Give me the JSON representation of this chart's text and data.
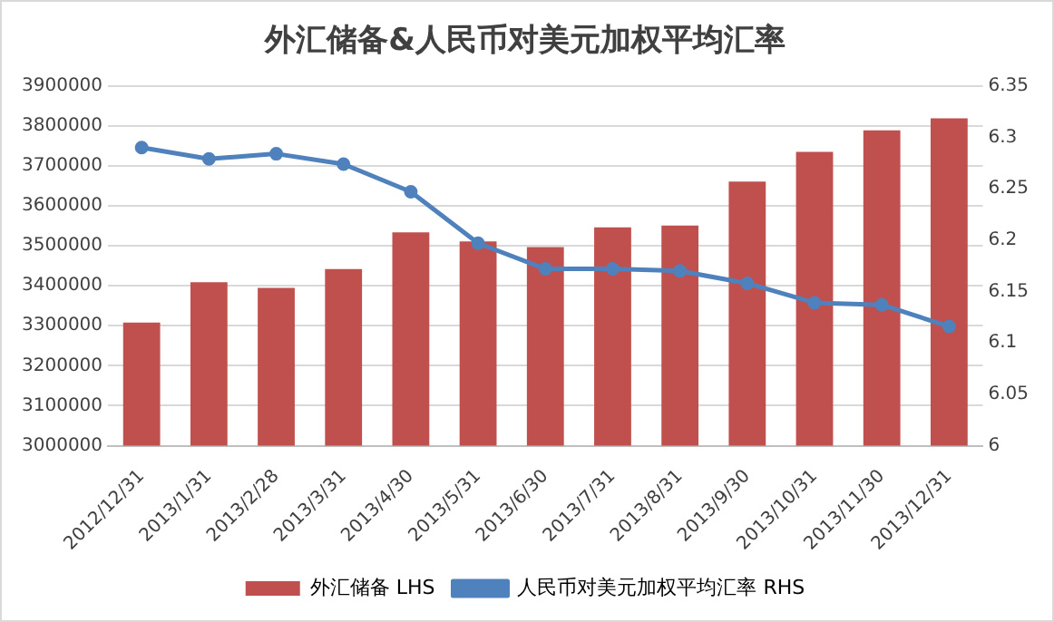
{
  "chart_data": {
    "type": "bar",
    "title": "外汇储备&人民币对美元加权平均汇率",
    "categories": [
      "2012/12/31",
      "2013/1/31",
      "2013/2/28",
      "2013/3/31",
      "2013/4/30",
      "2013/5/31",
      "2013/6/30",
      "2013/7/31",
      "2013/8/31",
      "2013/9/30",
      "2013/10/31",
      "2013/11/30",
      "2013/12/31"
    ],
    "series": [
      {
        "name": "外汇储备 LHS",
        "color": "#c0504d",
        "values": [
          3308000,
          3409000,
          3395000,
          3442000,
          3534000,
          3511000,
          3497000,
          3546000,
          3551000,
          3661000,
          3735000,
          3789000,
          3819000
        ]
      },
      {
        "name": "人民币对美元加权平均汇率 RHS",
        "type": "line",
        "axis": "y2",
        "color": "#4f81bd",
        "values": [
          6.29,
          6.279,
          6.284,
          6.274,
          6.247,
          6.197,
          6.172,
          6.172,
          6.17,
          6.158,
          6.139,
          6.137,
          6.116
        ]
      }
    ],
    "ylim": [
      3000000,
      3900000
    ],
    "yticks": [
      3000000,
      3100000,
      3200000,
      3300000,
      3400000,
      3500000,
      3600000,
      3700000,
      3800000,
      3900000
    ],
    "y2lim": [
      6,
      6.35
    ],
    "y2ticks": [
      6,
      6.05,
      6.1,
      6.15,
      6.2,
      6.25,
      6.3,
      6.35
    ],
    "grid": "y",
    "legend": "bottom",
    "marker": "circle"
  }
}
